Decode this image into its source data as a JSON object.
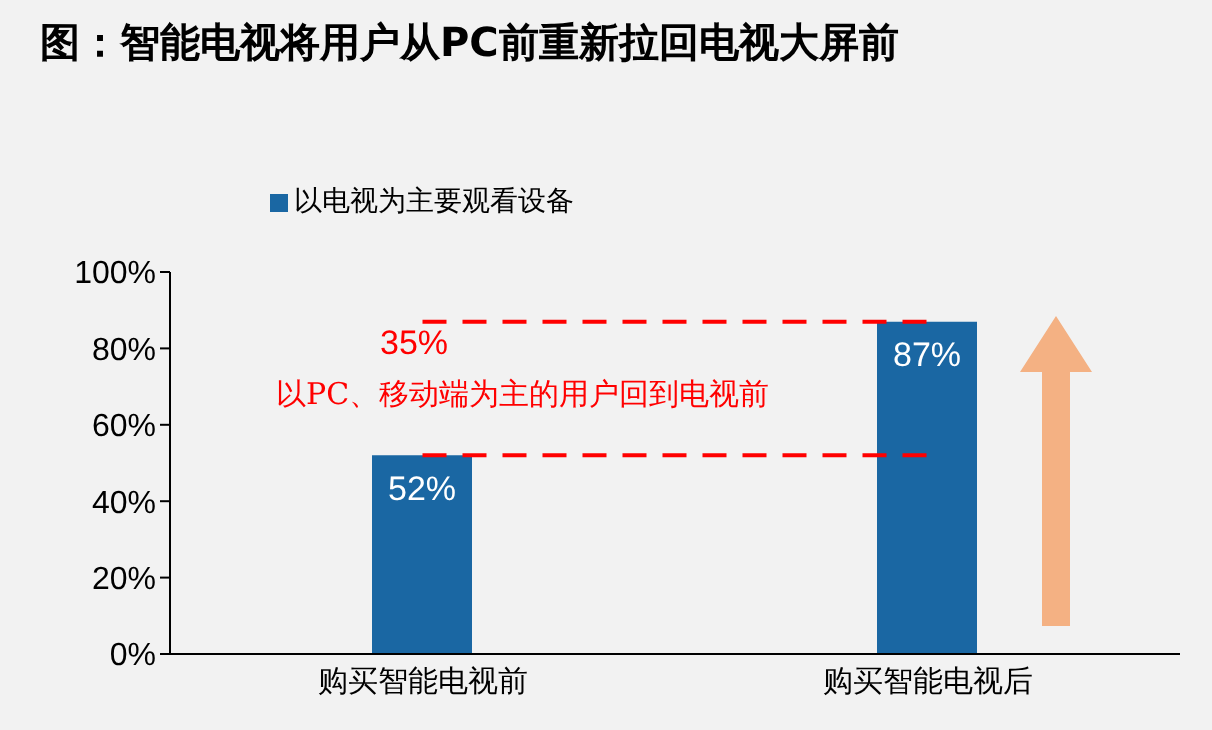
{
  "chart_data": {
    "type": "bar",
    "title": "图：智能电视将用户从PC前重新拉回电视大屏前",
    "categories": [
      "购买智能电视前",
      "购买智能电视后"
    ],
    "series": [
      {
        "name": "以电视为主要观看设备",
        "color": "#1a67a3",
        "values": [
          52,
          87
        ],
        "value_labels": [
          "52%",
          "87%"
        ]
      }
    ],
    "ylim": [
      0,
      100
    ],
    "yticks": [
      {
        "value": 0,
        "label": "0%"
      },
      {
        "value": 20,
        "label": "20%"
      },
      {
        "value": 40,
        "label": "40%"
      },
      {
        "value": 60,
        "label": "60%"
      },
      {
        "value": 80,
        "label": "80%"
      },
      {
        "value": 100,
        "label": "100%"
      }
    ],
    "ref_lines": [
      {
        "axis": "y",
        "value": 87,
        "color": "#ff0000",
        "line_style": "dashed"
      },
      {
        "axis": "y",
        "value": 52,
        "color": "#ff0000",
        "line_style": "dashed"
      }
    ],
    "annotations": [
      "35%",
      "以PC、移动端为主的用户回到电视前"
    ],
    "legend": "top left",
    "grid": false
  }
}
